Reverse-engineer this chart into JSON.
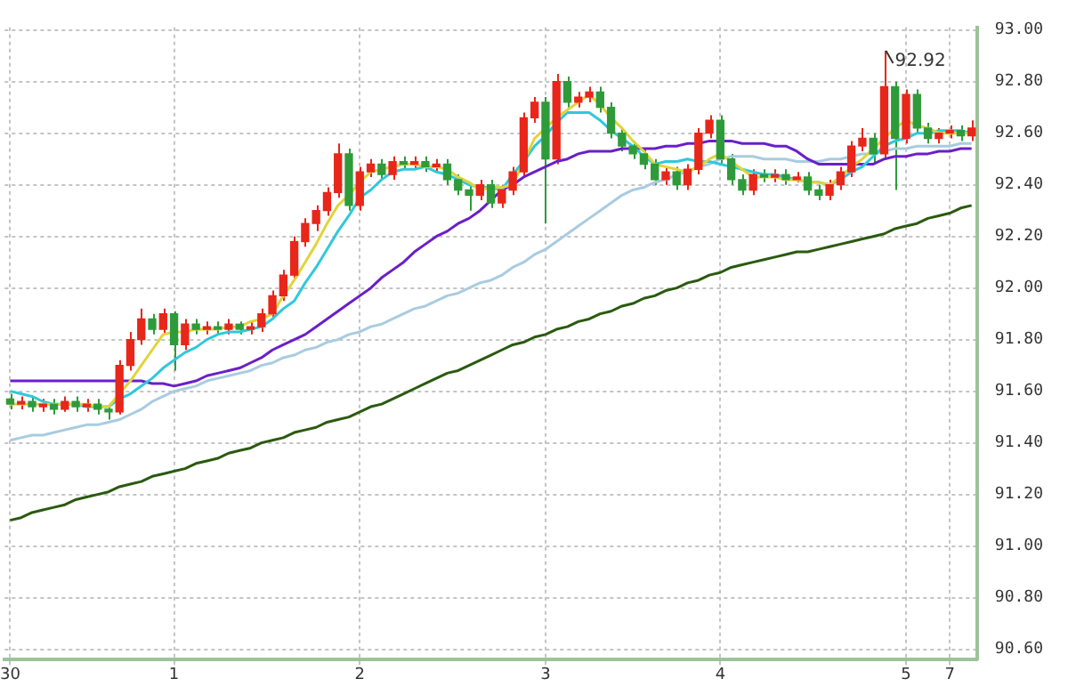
{
  "chart_data": {
    "type": "candlestick",
    "categories": [
      "30",
      null,
      null,
      null,
      null,
      null,
      null,
      null,
      null,
      null,
      null,
      null,
      null,
      null,
      null,
      "1",
      null,
      null,
      null,
      null,
      null,
      null,
      null,
      null,
      null,
      null,
      null,
      null,
      null,
      null,
      null,
      null,
      "2",
      null,
      null,
      null,
      null,
      null,
      null,
      null,
      null,
      null,
      null,
      null,
      null,
      null,
      null,
      null,
      null,
      "3",
      null,
      null,
      null,
      null,
      null,
      null,
      null,
      null,
      null,
      null,
      null,
      null,
      null,
      null,
      null,
      "4",
      null,
      null,
      null,
      null,
      null,
      null,
      null,
      null,
      null,
      null,
      null,
      null,
      null,
      null,
      null,
      null,
      "5",
      null,
      null,
      null,
      "7",
      null,
      null
    ],
    "ohlc": [
      [
        91.57,
        91.59,
        91.53,
        91.55
      ],
      [
        91.55,
        91.58,
        91.53,
        91.56
      ],
      [
        91.56,
        91.58,
        91.52,
        91.54
      ],
      [
        91.54,
        91.57,
        91.52,
        91.55
      ],
      [
        91.55,
        91.57,
        91.51,
        91.53
      ],
      [
        91.53,
        91.58,
        91.52,
        91.56
      ],
      [
        91.56,
        91.58,
        91.52,
        91.54
      ],
      [
        91.54,
        91.57,
        91.52,
        91.55
      ],
      [
        91.55,
        91.57,
        91.51,
        91.53
      ],
      [
        91.53,
        91.55,
        91.49,
        91.52
      ],
      [
        91.52,
        91.72,
        91.51,
        91.7
      ],
      [
        91.7,
        91.83,
        91.68,
        91.8
      ],
      [
        91.8,
        91.92,
        91.78,
        91.88
      ],
      [
        91.88,
        91.9,
        91.82,
        91.84
      ],
      [
        91.84,
        91.92,
        91.82,
        91.9
      ],
      [
        91.9,
        91.91,
        91.68,
        91.78
      ],
      [
        91.78,
        91.88,
        91.76,
        91.86
      ],
      [
        91.86,
        91.88,
        91.82,
        91.84
      ],
      [
        91.84,
        91.87,
        91.82,
        91.85
      ],
      [
        91.85,
        91.87,
        91.82,
        91.84
      ],
      [
        91.84,
        91.88,
        91.82,
        91.86
      ],
      [
        91.86,
        91.87,
        91.82,
        91.84
      ],
      [
        91.84,
        91.87,
        91.82,
        91.85
      ],
      [
        91.85,
        91.92,
        91.83,
        91.9
      ],
      [
        91.9,
        91.99,
        91.88,
        91.97
      ],
      [
        91.97,
        92.07,
        91.95,
        92.05
      ],
      [
        92.05,
        92.2,
        92.03,
        92.18
      ],
      [
        92.18,
        92.27,
        92.16,
        92.25
      ],
      [
        92.25,
        92.32,
        92.22,
        92.3
      ],
      [
        92.3,
        92.39,
        92.28,
        92.37
      ],
      [
        92.37,
        92.56,
        92.35,
        92.52
      ],
      [
        92.52,
        92.54,
        92.3,
        92.32
      ],
      [
        92.32,
        92.47,
        92.3,
        92.45
      ],
      [
        92.45,
        92.5,
        92.43,
        92.48
      ],
      [
        92.48,
        92.5,
        92.42,
        92.44
      ],
      [
        92.44,
        92.51,
        92.42,
        92.49
      ],
      [
        92.49,
        92.51,
        92.46,
        92.48
      ],
      [
        92.48,
        92.51,
        92.46,
        92.49
      ],
      [
        92.49,
        92.51,
        92.45,
        92.47
      ],
      [
        92.47,
        92.5,
        92.45,
        92.48
      ],
      [
        92.48,
        92.5,
        92.4,
        92.42
      ],
      [
        92.42,
        92.44,
        92.36,
        92.38
      ],
      [
        92.38,
        92.4,
        92.3,
        92.36
      ],
      [
        92.36,
        92.42,
        92.34,
        92.4
      ],
      [
        92.4,
        92.42,
        92.31,
        92.33
      ],
      [
        92.33,
        92.4,
        92.31,
        92.38
      ],
      [
        92.38,
        92.47,
        92.36,
        92.45
      ],
      [
        92.45,
        92.68,
        92.43,
        92.66
      ],
      [
        92.66,
        92.74,
        92.64,
        92.72
      ],
      [
        92.72,
        92.74,
        92.25,
        92.5
      ],
      [
        92.5,
        92.83,
        92.48,
        92.8
      ],
      [
        92.8,
        92.82,
        92.7,
        92.72
      ],
      [
        92.72,
        92.76,
        92.7,
        92.74
      ],
      [
        92.74,
        92.78,
        92.72,
        92.76
      ],
      [
        92.76,
        92.78,
        92.68,
        92.7
      ],
      [
        92.7,
        92.72,
        92.58,
        92.6
      ],
      [
        92.6,
        92.62,
        92.53,
        92.55
      ],
      [
        92.55,
        92.57,
        92.5,
        92.52
      ],
      [
        92.52,
        92.54,
        92.46,
        92.48
      ],
      [
        92.48,
        92.5,
        92.4,
        92.42
      ],
      [
        92.42,
        92.47,
        92.4,
        92.45
      ],
      [
        92.45,
        92.47,
        92.38,
        92.4
      ],
      [
        92.4,
        92.48,
        92.38,
        92.46
      ],
      [
        92.46,
        92.62,
        92.44,
        92.6
      ],
      [
        92.6,
        92.67,
        92.58,
        92.65
      ],
      [
        92.65,
        92.67,
        92.48,
        92.5
      ],
      [
        92.5,
        92.52,
        92.4,
        92.42
      ],
      [
        92.42,
        92.44,
        92.36,
        92.38
      ],
      [
        92.38,
        92.46,
        92.36,
        92.44
      ],
      [
        92.44,
        92.46,
        92.41,
        92.43
      ],
      [
        92.43,
        92.46,
        92.41,
        92.44
      ],
      [
        92.44,
        92.46,
        92.4,
        92.42
      ],
      [
        92.42,
        92.45,
        92.41,
        92.43
      ],
      [
        92.43,
        92.45,
        92.36,
        92.38
      ],
      [
        92.38,
        92.4,
        92.34,
        92.36
      ],
      [
        92.36,
        92.42,
        92.34,
        92.4
      ],
      [
        92.4,
        92.47,
        92.38,
        92.45
      ],
      [
        92.45,
        92.57,
        92.43,
        92.55
      ],
      [
        92.55,
        92.62,
        92.53,
        92.58
      ],
      [
        92.58,
        92.6,
        92.48,
        92.52
      ],
      [
        92.52,
        92.92,
        92.5,
        92.78
      ],
      [
        92.78,
        92.8,
        92.38,
        92.58
      ],
      [
        92.58,
        92.77,
        92.56,
        92.75
      ],
      [
        92.75,
        92.77,
        92.6,
        92.62
      ],
      [
        92.62,
        92.64,
        92.56,
        92.58
      ],
      [
        92.58,
        92.62,
        92.56,
        92.6
      ],
      [
        92.6,
        92.63,
        92.58,
        92.61
      ],
      [
        92.61,
        92.63,
        92.57,
        92.59
      ],
      [
        92.59,
        92.65,
        92.57,
        92.62
      ]
    ],
    "series": [
      {
        "type": "line",
        "color": "#e0d43a",
        "values": [
          91.55,
          91.55,
          91.55,
          91.55,
          91.55,
          91.55,
          91.55,
          91.55,
          91.54,
          91.54,
          91.59,
          91.64,
          91.7,
          91.76,
          91.82,
          91.83,
          91.83,
          91.84,
          91.84,
          91.84,
          91.85,
          91.85,
          91.87,
          91.88,
          91.9,
          91.97,
          92.03,
          92.1,
          92.17,
          92.25,
          92.32,
          92.36,
          92.41,
          92.45,
          92.46,
          92.47,
          92.48,
          92.48,
          92.47,
          92.47,
          92.46,
          92.43,
          92.41,
          92.38,
          92.39,
          92.39,
          92.4,
          92.49,
          92.58,
          92.62,
          92.66,
          92.69,
          92.72,
          92.75,
          92.71,
          92.66,
          92.62,
          92.57,
          92.53,
          92.48,
          92.47,
          92.46,
          92.45,
          92.47,
          92.5,
          92.52,
          92.49,
          92.46,
          92.43,
          92.43,
          92.43,
          92.42,
          92.42,
          92.41,
          92.41,
          92.4,
          92.43,
          92.47,
          92.5,
          92.54,
          92.58,
          92.62,
          92.65,
          92.63,
          92.62,
          92.6,
          92.6,
          92.6,
          92.6
        ]
      },
      {
        "type": "line",
        "color": "#30c8dc",
        "values": [
          91.6,
          91.59,
          91.58,
          91.56,
          91.55,
          91.55,
          91.55,
          91.54,
          91.54,
          91.54,
          91.57,
          91.59,
          91.62,
          91.65,
          91.69,
          91.72,
          91.75,
          91.77,
          91.8,
          91.82,
          91.83,
          91.83,
          91.84,
          91.85,
          91.88,
          91.92,
          91.95,
          92.02,
          92.08,
          92.15,
          92.22,
          92.28,
          92.35,
          92.38,
          92.42,
          92.45,
          92.46,
          92.46,
          92.47,
          92.45,
          92.44,
          92.42,
          92.4,
          92.39,
          92.39,
          92.38,
          92.44,
          92.49,
          92.55,
          92.59,
          92.64,
          92.68,
          92.68,
          92.68,
          92.65,
          92.61,
          92.58,
          92.55,
          92.51,
          92.48,
          92.49,
          92.49,
          92.5,
          92.49,
          92.49,
          92.48,
          92.47,
          92.46,
          92.45,
          92.44,
          92.44,
          92.43,
          92.42,
          92.41,
          92.41,
          92.4,
          92.42,
          92.45,
          92.47,
          92.51,
          92.55,
          92.57,
          92.58,
          92.6,
          92.6,
          92.61,
          92.61,
          92.61,
          92.6
        ]
      },
      {
        "type": "line",
        "color": "#6a1fc8",
        "values": [
          91.64,
          91.64,
          91.64,
          91.64,
          91.64,
          91.64,
          91.64,
          91.64,
          91.64,
          91.64,
          91.64,
          91.64,
          91.64,
          91.63,
          91.63,
          91.62,
          91.63,
          91.64,
          91.66,
          91.67,
          91.68,
          91.69,
          91.71,
          91.73,
          91.76,
          91.78,
          91.8,
          91.82,
          91.85,
          91.88,
          91.91,
          91.94,
          91.97,
          92.0,
          92.04,
          92.07,
          92.1,
          92.14,
          92.17,
          92.2,
          92.22,
          92.25,
          92.27,
          92.3,
          92.34,
          92.38,
          92.4,
          92.43,
          92.45,
          92.47,
          92.49,
          92.5,
          92.52,
          92.53,
          92.53,
          92.53,
          92.54,
          92.54,
          92.54,
          92.54,
          92.55,
          92.55,
          92.56,
          92.56,
          92.57,
          92.57,
          92.57,
          92.56,
          92.56,
          92.56,
          92.55,
          92.55,
          92.53,
          92.5,
          92.48,
          92.48,
          92.48,
          92.48,
          92.48,
          92.48,
          92.5,
          92.51,
          92.51,
          92.52,
          92.52,
          92.53,
          92.53,
          92.54,
          92.54
        ]
      },
      {
        "type": "line",
        "color": "#a8cce0",
        "values": [
          91.41,
          91.42,
          91.43,
          91.43,
          91.44,
          91.45,
          91.46,
          91.47,
          91.47,
          91.48,
          91.49,
          91.51,
          91.53,
          91.56,
          91.58,
          91.6,
          91.61,
          91.62,
          91.64,
          91.65,
          91.66,
          91.67,
          91.68,
          91.7,
          91.71,
          91.73,
          91.74,
          91.76,
          91.77,
          91.79,
          91.8,
          91.82,
          91.83,
          91.85,
          91.86,
          91.88,
          91.9,
          91.92,
          91.93,
          91.95,
          91.97,
          91.98,
          92.0,
          92.02,
          92.03,
          92.05,
          92.08,
          92.1,
          92.13,
          92.15,
          92.18,
          92.21,
          92.24,
          92.27,
          92.3,
          92.33,
          92.36,
          92.38,
          92.39,
          92.41,
          92.42,
          92.44,
          92.45,
          92.47,
          92.48,
          92.5,
          92.51,
          92.51,
          92.51,
          92.5,
          92.5,
          92.5,
          92.49,
          92.49,
          92.49,
          92.5,
          92.5,
          92.51,
          92.52,
          92.52,
          92.53,
          92.54,
          92.54,
          92.55,
          92.55,
          92.55,
          92.55,
          92.56,
          92.56
        ]
      },
      {
        "type": "line",
        "color": "#2a5a10",
        "values": [
          91.1,
          91.11,
          91.13,
          91.14,
          91.15,
          91.16,
          91.18,
          91.19,
          91.2,
          91.21,
          91.23,
          91.24,
          91.25,
          91.27,
          91.28,
          91.29,
          91.3,
          91.32,
          91.33,
          91.34,
          91.36,
          91.37,
          91.38,
          91.4,
          91.41,
          91.42,
          91.44,
          91.45,
          91.46,
          91.48,
          91.49,
          91.5,
          91.52,
          91.54,
          91.55,
          91.57,
          91.59,
          91.61,
          91.63,
          91.65,
          91.67,
          91.68,
          91.7,
          91.72,
          91.74,
          91.76,
          91.78,
          91.79,
          91.81,
          91.82,
          91.84,
          91.85,
          91.87,
          91.88,
          91.9,
          91.91,
          91.93,
          91.94,
          91.96,
          91.97,
          91.99,
          92.0,
          92.02,
          92.03,
          92.05,
          92.06,
          92.08,
          92.09,
          92.1,
          92.11,
          92.12,
          92.13,
          92.14,
          92.14,
          92.15,
          92.16,
          92.17,
          92.18,
          92.19,
          92.2,
          92.21,
          92.23,
          92.24,
          92.25,
          92.27,
          92.28,
          92.29,
          92.31,
          92.32
        ]
      }
    ],
    "ylim": [
      90.56,
      93.01
    ],
    "yticks": [
      {
        "value": 90.6,
        "label": "90.60"
      },
      {
        "value": 90.8,
        "label": "90.80"
      },
      {
        "value": 91,
        "label": "91.00"
      },
      {
        "value": 91.2,
        "label": "91.20"
      },
      {
        "value": 91.4,
        "label": "91.40"
      },
      {
        "value": 91.6,
        "label": "91.60"
      },
      {
        "value": 91.8,
        "label": "91.80"
      },
      {
        "value": 92,
        "label": "92.00"
      },
      {
        "value": 92.2,
        "label": "92.20"
      },
      {
        "value": 92.4,
        "label": "92.40"
      },
      {
        "value": 92.6,
        "label": "92.60"
      },
      {
        "value": 92.8,
        "label": "92.80"
      },
      {
        "value": 93,
        "label": "93.00"
      }
    ],
    "grid": true,
    "annotations": [
      "92.92"
    ]
  }
}
